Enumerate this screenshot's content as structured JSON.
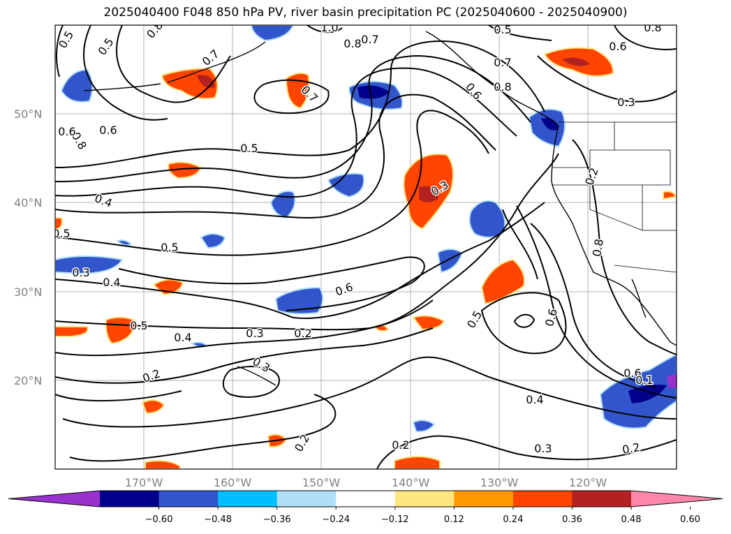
{
  "title": "2025040400 F048 850 hPa PV, river basin precipitation PC (2025040600 - 2025040900)",
  "lat_labels": [
    "50°N",
    "40°N",
    "30°N",
    "20°N"
  ],
  "lon_labels": [
    "170°W",
    "160°W",
    "150°W",
    "140°W",
    "130°W",
    "120°W"
  ],
  "colorbar": {
    "colors": [
      "#9932cc",
      "#00008b",
      "#3355cc",
      "#00bfff",
      "#b0e0f8",
      "#ffffff",
      "#ffe680",
      "#ff9900",
      "#ff4500",
      "#b22222",
      "#ff88aa"
    ],
    "tick_labels": [
      "−0.60",
      "−0.48",
      "−0.36",
      "−0.24",
      "−0.12",
      "0.12",
      "0.24",
      "0.36",
      "0.48",
      "0.60"
    ]
  },
  "contour_labels": [
    "0.5",
    "0.5",
    "0.8",
    "0.7",
    "1.0",
    "0.8",
    "0.7",
    "0.5",
    "0.8",
    "0.6",
    "0.7",
    "0.6",
    "0.8",
    "0.6",
    "0.3",
    "0.8",
    "0.7",
    "0.6",
    "0.5",
    "0.2",
    "0.4",
    "0.3",
    "0.5",
    "0.5",
    "0.4",
    "0.3",
    "0.6",
    "0.5",
    "0.4",
    "0.3",
    "0.2",
    "0.5",
    "0.6",
    "0.2",
    "0.2",
    "0.4",
    "0.6",
    "0.1",
    "0.2",
    "0.3",
    "0.2",
    "0.8",
    "0.3"
  ]
}
